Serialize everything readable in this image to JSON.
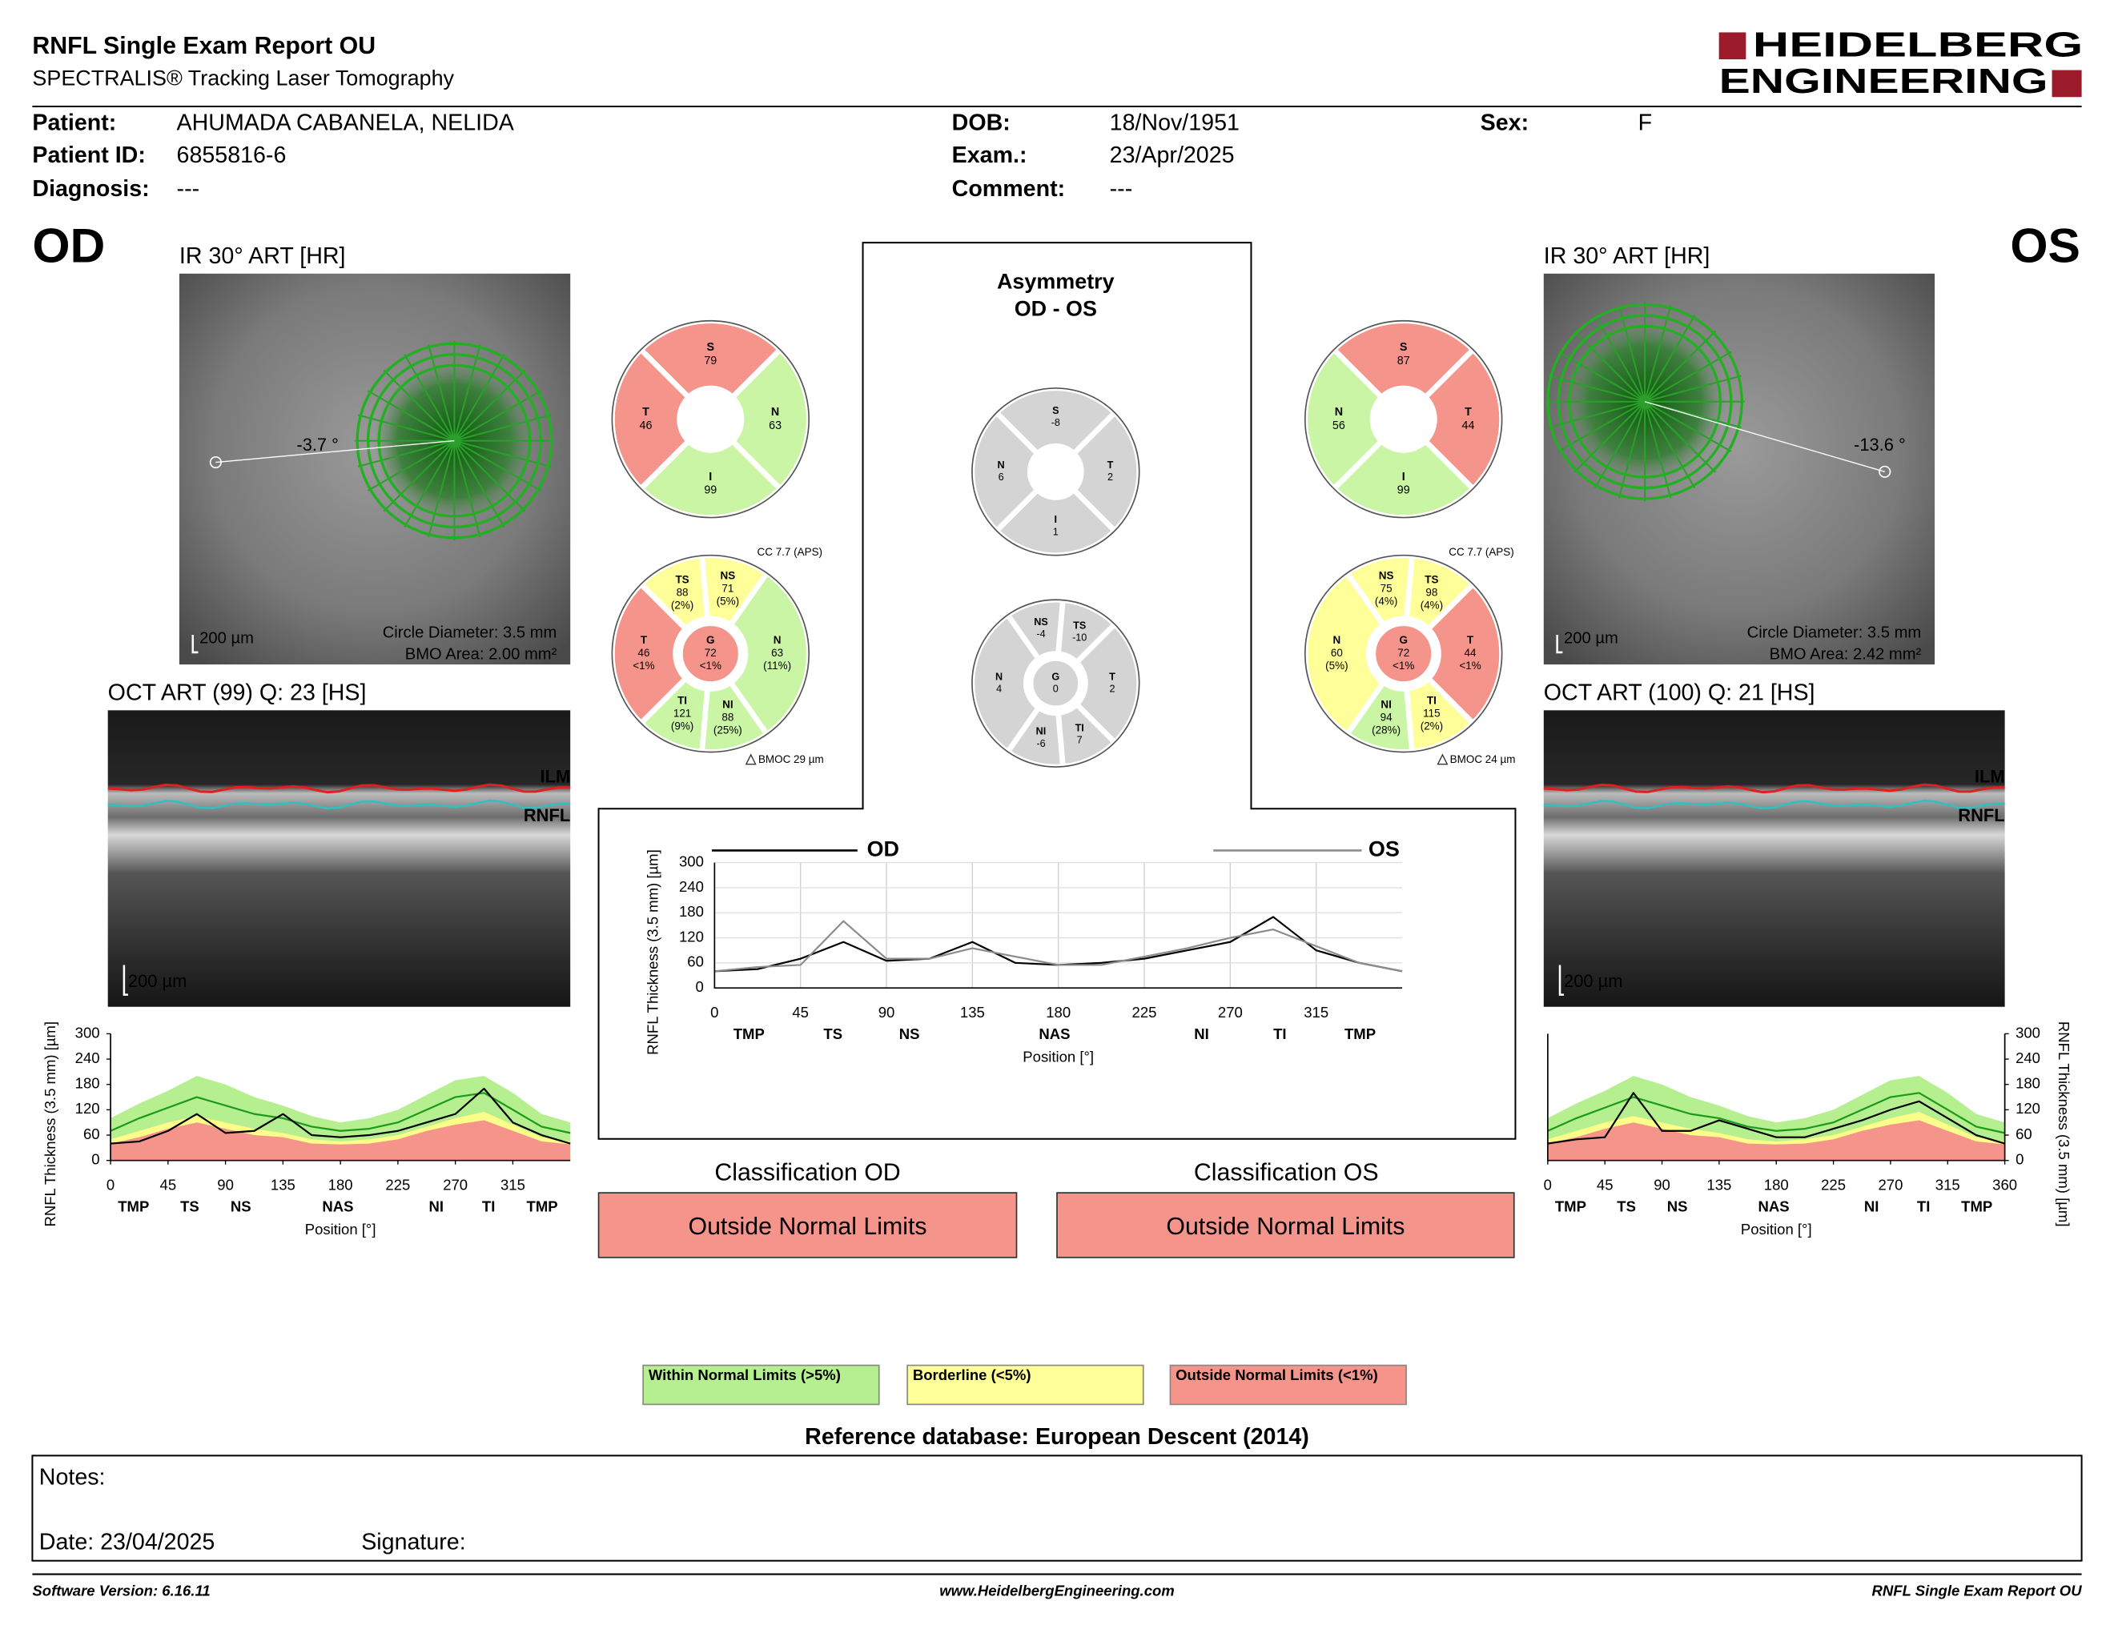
{
  "header": {
    "title": "RNFL Single Exam Report OU",
    "subtitle": "SPECTRALIS® Tracking Laser Tomography",
    "logo": [
      "HEIDELBERG",
      "ENGINEERING"
    ]
  },
  "patient": {
    "columns": [
      [
        {
          "label": "Patient:",
          "value": "AHUMADA CABANELA, NELIDA"
        },
        {
          "label": "Patient ID:",
          "value": "6855816-6"
        },
        {
          "label": "Diagnosis:",
          "value": "---"
        }
      ],
      [
        {
          "label": "DOB:",
          "value": "18/Nov/1951"
        },
        {
          "label": "Exam.:",
          "value": "23/Apr/2025"
        },
        {
          "label": "Comment:",
          "value": "---"
        }
      ],
      [
        {
          "label": "Sex:",
          "value": "F"
        }
      ]
    ]
  },
  "eyes": [
    {
      "eye": "OD",
      "ir_label": "IR 30° ART [HR]",
      "angle": "-3.7 °",
      "scale_bar": "200 µm",
      "circle_diameter": "Circle Diameter: 3.5 mm",
      "bmo_area": "BMO Area: 2.00 mm²",
      "oct_label": "OCT ART (99) Q: 23 [HS]",
      "ilm": "ILM",
      "rnfl": "RNFL",
      "oct_scale": "200 µm",
      "sectors4": [
        {
          "label": "S",
          "value": 79,
          "color": "#f4948a"
        },
        {
          "label": "N",
          "value": 63,
          "color": "#c9f5a4"
        },
        {
          "label": "I",
          "value": 99,
          "color": "#c9f5a4"
        },
        {
          "label": "T",
          "value": 46,
          "color": "#f4948a"
        }
      ],
      "cc": "CC 7.7 (APS)",
      "sectors6": [
        {
          "label": "TS",
          "value": 88,
          "pct": "(2%)",
          "color": "#ffff99"
        },
        {
          "label": "NS",
          "value": 71,
          "pct": "(5%)",
          "color": "#ffff99"
        },
        {
          "label": "N",
          "value": 63,
          "pct": "(11%)",
          "color": "#c9f5a4"
        },
        {
          "label": "NI",
          "value": 88,
          "pct": "(25%)",
          "color": "#c9f5a4"
        },
        {
          "label": "TI",
          "value": 121,
          "pct": "(9%)",
          "color": "#c9f5a4"
        },
        {
          "label": "T",
          "value": 46,
          "pct": "<1%",
          "color": "#f4948a"
        },
        {
          "label": "G",
          "value": 72,
          "pct": "<1%",
          "color": "#f4948a"
        }
      ],
      "bmoc": "BMOC 29 µm",
      "classification": {
        "title": "Classification OD",
        "label": "Outside Normal Limits",
        "color": "#f4948a"
      }
    },
    {
      "eye": "OS",
      "ir_label": "IR 30° ART [HR]",
      "angle": "-13.6 °",
      "scale_bar": "200 µm",
      "circle_diameter": "Circle Diameter: 3.5 mm",
      "bmo_area": "BMO Area: 2.42 mm²",
      "oct_label": "OCT ART (100) Q: 21 [HS]",
      "ilm": "ILM",
      "rnfl": "RNFL",
      "oct_scale": "200 µm",
      "sectors4": [
        {
          "label": "S",
          "value": 87,
          "color": "#f4948a"
        },
        {
          "label": "N",
          "value": 56,
          "color": "#c9f5a4"
        },
        {
          "label": "I",
          "value": 99,
          "color": "#c9f5a4"
        },
        {
          "label": "T",
          "value": 44,
          "color": "#f4948a"
        }
      ],
      "cc": "CC 7.7 (APS)",
      "sectors6": [
        {
          "label": "NS",
          "value": 75,
          "pct": "(4%)",
          "color": "#ffff99"
        },
        {
          "label": "TS",
          "value": 98,
          "pct": "(4%)",
          "color": "#ffff99"
        },
        {
          "label": "T",
          "value": 44,
          "pct": "<1%",
          "color": "#f4948a"
        },
        {
          "label": "TI",
          "value": 115,
          "pct": "(2%)",
          "color": "#ffff99"
        },
        {
          "label": "NI",
          "value": 94,
          "pct": "(28%)",
          "color": "#c9f5a4"
        },
        {
          "label": "N",
          "value": 60,
          "pct": "(5%)",
          "color": "#ffff99"
        },
        {
          "label": "G",
          "value": 72,
          "pct": "<1%",
          "color": "#f4948a"
        }
      ],
      "bmoc": "BMOC 24 µm",
      "classification": {
        "title": "Classification OS",
        "label": "Outside Normal Limits",
        "color": "#f4948a"
      }
    }
  ],
  "asymmetry": {
    "title": [
      "Asymmetry",
      "OD - OS"
    ],
    "sectors4": [
      {
        "label": "S",
        "value": -8,
        "color": "#d4d4d4"
      },
      {
        "label": "T",
        "value": 2,
        "color": "#d4d4d4"
      },
      {
        "label": "I",
        "value": 1,
        "color": "#d4d4d4"
      },
      {
        "label": "N",
        "value": 6,
        "color": "#d4d4d4"
      }
    ],
    "sectors6": [
      {
        "label": "NS",
        "value": -4,
        "color": "#d4d4d4"
      },
      {
        "label": "TS",
        "value": -10,
        "color": "#d4d4d4"
      },
      {
        "label": "T",
        "value": 2,
        "color": "#d4d4d4"
      },
      {
        "label": "TI",
        "value": 7,
        "color": "#d4d4d4"
      },
      {
        "label": "NI",
        "value": -6,
        "color": "#d4d4d4"
      },
      {
        "label": "N",
        "value": 4,
        "color": "#d4d4d4"
      },
      {
        "label": "G",
        "value": 0,
        "color": "#d4d4d4"
      }
    ]
  },
  "charts": [
    {
      "type": "line",
      "ylabel": "RNFL Thickness (3.5 mm) [µm]",
      "xlabel": "Position [°]",
      "xlim": [
        0,
        360
      ],
      "ylim": [
        0,
        300
      ],
      "xticks": [
        0,
        45,
        90,
        135,
        180,
        225,
        270,
        315
      ],
      "yticks": [
        0,
        60,
        120,
        180,
        240,
        300
      ],
      "grid": false,
      "regions": [
        {
          "value": 18,
          "label": "TMP"
        },
        {
          "value": 62,
          "label": "TS"
        },
        {
          "value": 102,
          "label": "NS"
        },
        {
          "value": 178,
          "label": "NAS"
        },
        {
          "value": 255,
          "label": "NI"
        },
        {
          "value": 296,
          "label": "TI"
        },
        {
          "value": 338,
          "label": "TMP"
        }
      ],
      "x": [
        0,
        22.5,
        45,
        67.5,
        90,
        112.5,
        135,
        157.5,
        180,
        202.5,
        225,
        247.5,
        270,
        292.5,
        315,
        337.5,
        360
      ],
      "series": [
        {
          "color": "#b5ef8f",
          "fill": true,
          "values": [
            100,
            135,
            165,
            200,
            180,
            150,
            130,
            105,
            90,
            100,
            120,
            155,
            190,
            200,
            160,
            110,
            90
          ]
        },
        {
          "color": "#fdfd8a",
          "fill": true,
          "values": [
            50,
            70,
            90,
            105,
            90,
            75,
            65,
            50,
            45,
            50,
            60,
            80,
            100,
            115,
            85,
            55,
            45
          ]
        },
        {
          "color": "#f4948a",
          "fill": true,
          "values": [
            40,
            55,
            75,
            90,
            75,
            60,
            55,
            40,
            38,
            40,
            50,
            70,
            85,
            95,
            70,
            45,
            38
          ]
        },
        {
          "color": "#1a9a1a",
          "values": [
            70,
            100,
            125,
            150,
            130,
            110,
            100,
            80,
            70,
            75,
            90,
            120,
            150,
            160,
            120,
            80,
            65
          ]
        },
        {
          "color": "#000000",
          "values": [
            40,
            45,
            70,
            110,
            65,
            70,
            110,
            60,
            55,
            60,
            70,
            90,
            110,
            170,
            90,
            60,
            40
          ]
        }
      ]
    },
    {
      "type": "line",
      "ylabel": "RNFL Thickness (3.5 mm) [µm]",
      "xlabel": "Position [°]",
      "xlim": [
        0,
        360
      ],
      "ylim": [
        0,
        300
      ],
      "xticks": [
        0,
        45,
        90,
        135,
        180,
        225,
        270,
        315
      ],
      "yticks": [
        0,
        60,
        120,
        180,
        240,
        300
      ],
      "grid": true,
      "regions": [
        {
          "value": 18,
          "label": "TMP"
        },
        {
          "value": 62,
          "label": "TS"
        },
        {
          "value": 102,
          "label": "NS"
        },
        {
          "value": 178,
          "label": "NAS"
        },
        {
          "value": 255,
          "label": "NI"
        },
        {
          "value": 296,
          "label": "TI"
        },
        {
          "value": 338,
          "label": "TMP"
        }
      ],
      "x": [
        0,
        22.5,
        45,
        67.5,
        90,
        112.5,
        135,
        157.5,
        180,
        202.5,
        225,
        247.5,
        270,
        292.5,
        315,
        337.5,
        360
      ],
      "series": [
        {
          "name": "OD",
          "color": "#000000",
          "values": [
            40,
            45,
            70,
            110,
            65,
            70,
            110,
            60,
            55,
            60,
            70,
            90,
            110,
            170,
            90,
            60,
            40
          ]
        },
        {
          "name": "OS",
          "color": "#8c8c8c",
          "values": [
            40,
            50,
            55,
            160,
            70,
            70,
            95,
            75,
            55,
            55,
            75,
            95,
            120,
            140,
            100,
            60,
            40
          ]
        }
      ]
    },
    {
      "type": "line",
      "ylabel": "RNFL Thickness (3.5 mm) [µm]",
      "xlabel": "Position [°]",
      "xlim": [
        0,
        360
      ],
      "ylim": [
        0,
        300
      ],
      "xticks": [
        0,
        45,
        90,
        135,
        180,
        225,
        270,
        315,
        360
      ],
      "yticks": [
        0,
        60,
        120,
        180,
        240,
        300
      ],
      "grid": false,
      "regions": [
        {
          "value": 18,
          "label": "TMP"
        },
        {
          "value": 62,
          "label": "TS"
        },
        {
          "value": 102,
          "label": "NS"
        },
        {
          "value": 178,
          "label": "NAS"
        },
        {
          "value": 255,
          "label": "NI"
        },
        {
          "value": 296,
          "label": "TI"
        },
        {
          "value": 338,
          "label": "TMP"
        }
      ],
      "x": [
        0,
        22.5,
        45,
        67.5,
        90,
        112.5,
        135,
        157.5,
        180,
        202.5,
        225,
        247.5,
        270,
        292.5,
        315,
        337.5,
        360
      ],
      "series": [
        {
          "color": "#b5ef8f",
          "fill": true,
          "values": [
            100,
            135,
            165,
            200,
            180,
            150,
            130,
            105,
            90,
            100,
            120,
            155,
            190,
            200,
            160,
            110,
            90
          ]
        },
        {
          "color": "#fdfd8a",
          "fill": true,
          "values": [
            50,
            70,
            90,
            105,
            90,
            75,
            65,
            50,
            45,
            50,
            60,
            80,
            100,
            115,
            85,
            55,
            45
          ]
        },
        {
          "color": "#f4948a",
          "fill": true,
          "values": [
            40,
            55,
            75,
            90,
            75,
            60,
            55,
            40,
            38,
            40,
            50,
            70,
            85,
            95,
            70,
            45,
            38
          ]
        },
        {
          "color": "#1a9a1a",
          "values": [
            70,
            100,
            125,
            150,
            130,
            110,
            100,
            80,
            70,
            75,
            90,
            120,
            150,
            160,
            120,
            80,
            65
          ]
        },
        {
          "color": "#000000",
          "values": [
            40,
            50,
            55,
            160,
            70,
            70,
            95,
            75,
            55,
            55,
            75,
            95,
            120,
            140,
            100,
            60,
            40
          ]
        }
      ]
    }
  ],
  "legend": [
    {
      "label": "Within Normal Limits (>5%)",
      "color": "#b5ef8f"
    },
    {
      "label": "Borderline (<5%)",
      "color": "#ffff99"
    },
    {
      "label": "Outside Normal Limits (<1%)",
      "color": "#f4948a"
    }
  ],
  "reference": "Reference database: European Descent (2014)",
  "notes": {
    "label": "Notes:",
    "date": "Date: 23/04/2025",
    "signature": "Signature:"
  },
  "footer": [
    "Software Version: 6.16.11",
    "www.HeidelbergEngineering.com",
    "RNFL Single Exam Report OU"
  ]
}
